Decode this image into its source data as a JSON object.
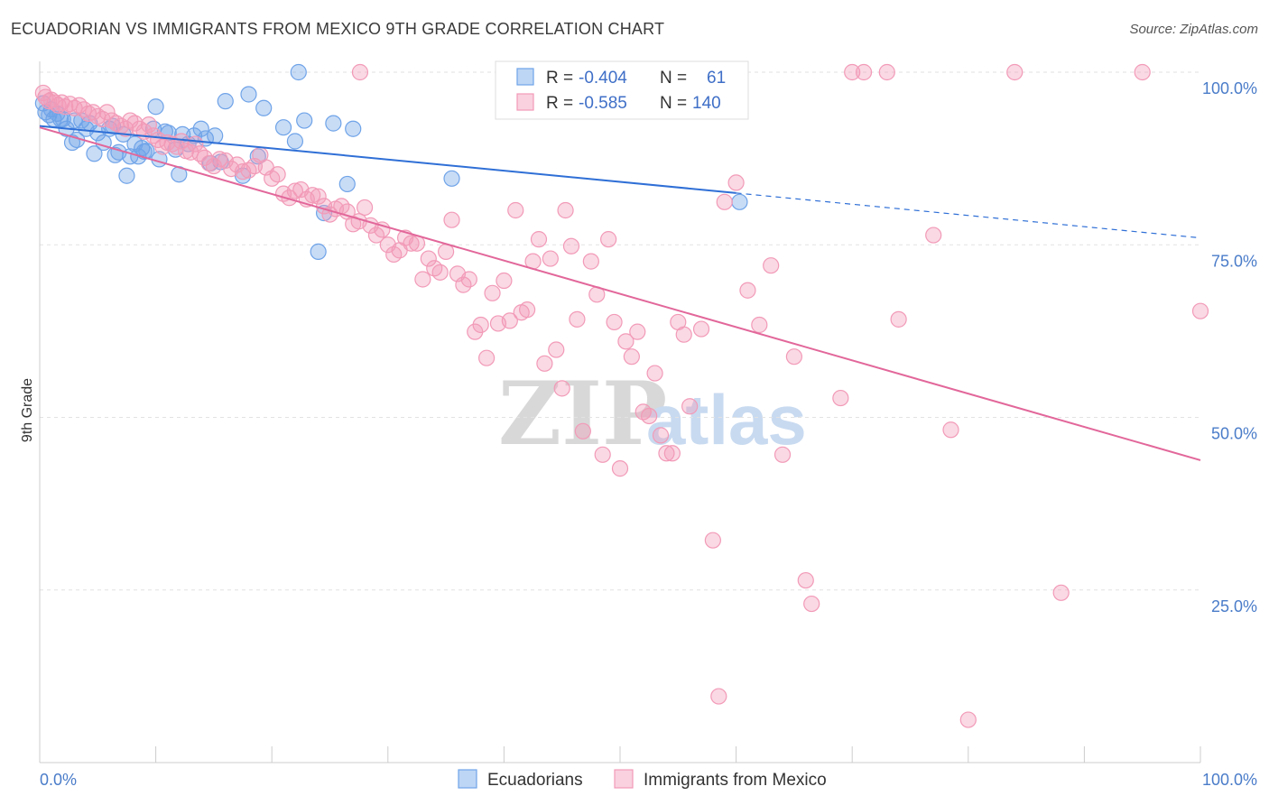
{
  "title": "ECUADORIAN VS IMMIGRANTS FROM MEXICO 9TH GRADE CORRELATION CHART",
  "source": "Source: ZipAtlas.com",
  "watermark": {
    "zip": "ZIP",
    "atlas": "atlas"
  },
  "legend": {
    "rows": [
      {
        "r_label": "R =",
        "r_value": "-0.404",
        "n_label": "N =",
        "n_value": "61",
        "color": "#6fa3e8"
      },
      {
        "r_label": "R =",
        "r_value": "-0.585",
        "n_label": "N =",
        "n_value": "140",
        "color": "#f29ab7"
      }
    ]
  },
  "bottom_legend": [
    "Ecuadorians",
    "Immigrants from Mexico"
  ],
  "chart_data": {
    "type": "scatter",
    "title": "ECUADORIAN VS IMMIGRANTS FROM MEXICO 9TH GRADE CORRELATION CHART",
    "xlabel": "",
    "ylabel": "9th Grade",
    "xlim": [
      0,
      100
    ],
    "ylim": [
      0,
      100
    ],
    "x_tick_labels": [
      "0.0%",
      "100.0%"
    ],
    "y_ticks": [
      25,
      50,
      75,
      100
    ],
    "y_tick_labels": [
      "25.0%",
      "50.0%",
      "75.0%",
      "100.0%"
    ],
    "grid": true,
    "legend_position": "top-center",
    "series": [
      {
        "name": "Ecuadorians",
        "color": "#6fa3e8",
        "r": -0.404,
        "n": 61,
        "trend": {
          "x": [
            0,
            60
          ],
          "y": [
            92.2,
            82.5
          ],
          "dashed_extension_to": [
            100,
            76.0
          ]
        },
        "points": [
          [
            0.3,
            95.5
          ],
          [
            0.5,
            94.2
          ],
          [
            0.8,
            93.8
          ],
          [
            1.0,
            94.6
          ],
          [
            1.2,
            93.2
          ],
          [
            1.5,
            94.0
          ],
          [
            2.0,
            93.2
          ],
          [
            2.3,
            91.8
          ],
          [
            2.8,
            89.8
          ],
          [
            3.2,
            90.2
          ],
          [
            3.6,
            93.0
          ],
          [
            4.0,
            91.8
          ],
          [
            4.3,
            92.6
          ],
          [
            4.7,
            88.2
          ],
          [
            5.0,
            91.2
          ],
          [
            5.5,
            89.8
          ],
          [
            6.0,
            91.8
          ],
          [
            6.3,
            92.2
          ],
          [
            6.8,
            88.4
          ],
          [
            7.2,
            91.0
          ],
          [
            7.5,
            85.0
          ],
          [
            7.8,
            87.8
          ],
          [
            8.2,
            89.6
          ],
          [
            8.5,
            87.8
          ],
          [
            8.8,
            89.0
          ],
          [
            9.2,
            88.6
          ],
          [
            9.8,
            91.8
          ],
          [
            10.0,
            95.0
          ],
          [
            10.3,
            87.4
          ],
          [
            10.8,
            91.4
          ],
          [
            11.1,
            91.2
          ],
          [
            11.7,
            88.8
          ],
          [
            12.0,
            85.2
          ],
          [
            12.3,
            91.0
          ],
          [
            12.8,
            89.6
          ],
          [
            13.3,
            90.8
          ],
          [
            13.9,
            91.8
          ],
          [
            14.3,
            90.4
          ],
          [
            14.7,
            86.8
          ],
          [
            15.1,
            90.8
          ],
          [
            15.6,
            87.0
          ],
          [
            16.0,
            95.8
          ],
          [
            17.5,
            85.0
          ],
          [
            18.0,
            96.8
          ],
          [
            18.8,
            87.8
          ],
          [
            19.3,
            94.8
          ],
          [
            21.0,
            92.0
          ],
          [
            22.3,
            100.0
          ],
          [
            22.0,
            90.0
          ],
          [
            22.8,
            93.0
          ],
          [
            24.0,
            74.0
          ],
          [
            24.5,
            79.6
          ],
          [
            25.3,
            92.6
          ],
          [
            26.5,
            83.8
          ],
          [
            27.0,
            91.8
          ],
          [
            35.5,
            84.6
          ],
          [
            60.3,
            81.2
          ],
          [
            1.8,
            93.2
          ],
          [
            3.0,
            93.0
          ],
          [
            6.5,
            88.0
          ],
          [
            9.0,
            88.5
          ]
        ]
      },
      {
        "name": "Immigrants from Mexico",
        "color": "#f29ab7",
        "r": -0.585,
        "n": 140,
        "trend": {
          "x": [
            0,
            100
          ],
          "y": [
            92.0,
            43.8
          ]
        },
        "points": [
          [
            0.3,
            97.0
          ],
          [
            0.5,
            96.4
          ],
          [
            0.8,
            95.8
          ],
          [
            1.0,
            96.0
          ],
          [
            1.3,
            95.6
          ],
          [
            1.6,
            95.2
          ],
          [
            1.9,
            95.6
          ],
          [
            2.2,
            95.0
          ],
          [
            2.6,
            95.4
          ],
          [
            3.0,
            94.8
          ],
          [
            3.4,
            95.2
          ],
          [
            3.8,
            94.6
          ],
          [
            4.2,
            94.0
          ],
          [
            4.6,
            94.2
          ],
          [
            5.0,
            93.6
          ],
          [
            5.4,
            93.2
          ],
          [
            5.8,
            94.2
          ],
          [
            6.2,
            93.0
          ],
          [
            6.6,
            92.6
          ],
          [
            7.0,
            92.2
          ],
          [
            7.4,
            91.8
          ],
          [
            7.8,
            93.0
          ],
          [
            8.2,
            92.6
          ],
          [
            8.6,
            91.8
          ],
          [
            9.0,
            91.4
          ],
          [
            9.4,
            92.4
          ],
          [
            9.8,
            90.8
          ],
          [
            10.2,
            90.2
          ],
          [
            10.6,
            89.2
          ],
          [
            11.0,
            89.8
          ],
          [
            11.4,
            89.6
          ],
          [
            11.8,
            89.2
          ],
          [
            12.2,
            90.0
          ],
          [
            12.6,
            88.6
          ],
          [
            13.0,
            88.4
          ],
          [
            13.4,
            89.6
          ],
          [
            13.8,
            88.2
          ],
          [
            14.2,
            87.6
          ],
          [
            14.6,
            86.8
          ],
          [
            15.0,
            86.4
          ],
          [
            15.5,
            87.4
          ],
          [
            16.0,
            87.2
          ],
          [
            16.5,
            86.0
          ],
          [
            17.0,
            86.6
          ],
          [
            17.5,
            85.6
          ],
          [
            18.0,
            85.8
          ],
          [
            18.5,
            86.4
          ],
          [
            19.0,
            88.0
          ],
          [
            19.5,
            86.2
          ],
          [
            20.0,
            84.6
          ],
          [
            20.5,
            85.2
          ],
          [
            21.0,
            82.4
          ],
          [
            21.5,
            81.8
          ],
          [
            22.0,
            82.8
          ],
          [
            22.5,
            83.0
          ],
          [
            23.0,
            81.6
          ],
          [
            23.5,
            82.2
          ],
          [
            24.0,
            82.0
          ],
          [
            24.5,
            80.6
          ],
          [
            25.0,
            79.4
          ],
          [
            25.5,
            80.2
          ],
          [
            26.0,
            80.6
          ],
          [
            26.5,
            79.8
          ],
          [
            27.0,
            78.0
          ],
          [
            27.5,
            78.4
          ],
          [
            28.0,
            80.4
          ],
          [
            28.5,
            77.8
          ],
          [
            29.0,
            76.4
          ],
          [
            29.5,
            77.2
          ],
          [
            30.0,
            75.0
          ],
          [
            30.5,
            73.6
          ],
          [
            31.0,
            74.2
          ],
          [
            31.5,
            76.0
          ],
          [
            32.0,
            75.2
          ],
          [
            32.5,
            75.2
          ],
          [
            33.0,
            70.0
          ],
          [
            33.5,
            73.0
          ],
          [
            34.0,
            71.6
          ],
          [
            34.5,
            71.0
          ],
          [
            35.0,
            74.0
          ],
          [
            35.5,
            78.6
          ],
          [
            36.0,
            70.8
          ],
          [
            36.5,
            69.2
          ],
          [
            37.0,
            70.0
          ],
          [
            37.5,
            62.4
          ],
          [
            38.0,
            63.4
          ],
          [
            38.5,
            58.6
          ],
          [
            39.0,
            68.0
          ],
          [
            39.5,
            63.6
          ],
          [
            40.0,
            69.8
          ],
          [
            40.5,
            64.0
          ],
          [
            41.0,
            80.0
          ],
          [
            41.5,
            65.2
          ],
          [
            42.0,
            65.6
          ],
          [
            42.5,
            72.6
          ],
          [
            43.0,
            75.8
          ],
          [
            43.5,
            57.8
          ],
          [
            44.0,
            73.0
          ],
          [
            44.5,
            59.8
          ],
          [
            45.0,
            54.2
          ],
          [
            45.3,
            80.0
          ],
          [
            45.8,
            74.8
          ],
          [
            46.3,
            64.2
          ],
          [
            46.8,
            48.0
          ],
          [
            47.5,
            72.6
          ],
          [
            48.0,
            67.8
          ],
          [
            48.5,
            44.6
          ],
          [
            49.0,
            75.8
          ],
          [
            49.5,
            63.8
          ],
          [
            50.0,
            42.6
          ],
          [
            50.5,
            61.0
          ],
          [
            51.0,
            58.8
          ],
          [
            51.5,
            62.4
          ],
          [
            52.0,
            50.8
          ],
          [
            52.5,
            50.2
          ],
          [
            53.0,
            56.4
          ],
          [
            53.5,
            47.4
          ],
          [
            54.0,
            44.8
          ],
          [
            54.5,
            44.8
          ],
          [
            55.0,
            63.8
          ],
          [
            55.5,
            62.0
          ],
          [
            56.0,
            51.6
          ],
          [
            57.0,
            62.8
          ],
          [
            58.0,
            32.2
          ],
          [
            58.5,
            9.6
          ],
          [
            59.0,
            81.2
          ],
          [
            60.0,
            84.0
          ],
          [
            61.0,
            68.4
          ],
          [
            62.0,
            63.4
          ],
          [
            63.0,
            72.0
          ],
          [
            64.0,
            44.6
          ],
          [
            65.0,
            58.8
          ],
          [
            66.0,
            26.4
          ],
          [
            66.5,
            23.0
          ],
          [
            69.0,
            52.8
          ],
          [
            70.0,
            100.0
          ],
          [
            71.0,
            100.0
          ],
          [
            73.0,
            100.0
          ],
          [
            74.0,
            64.2
          ],
          [
            77.0,
            76.4
          ],
          [
            78.5,
            48.2
          ],
          [
            80.0,
            6.2
          ],
          [
            84.0,
            100.0
          ],
          [
            88.0,
            24.6
          ],
          [
            95.0,
            100.0
          ],
          [
            100.0,
            65.4
          ],
          [
            41.0,
            100.0
          ],
          [
            27.6,
            100.0
          ]
        ]
      }
    ]
  }
}
